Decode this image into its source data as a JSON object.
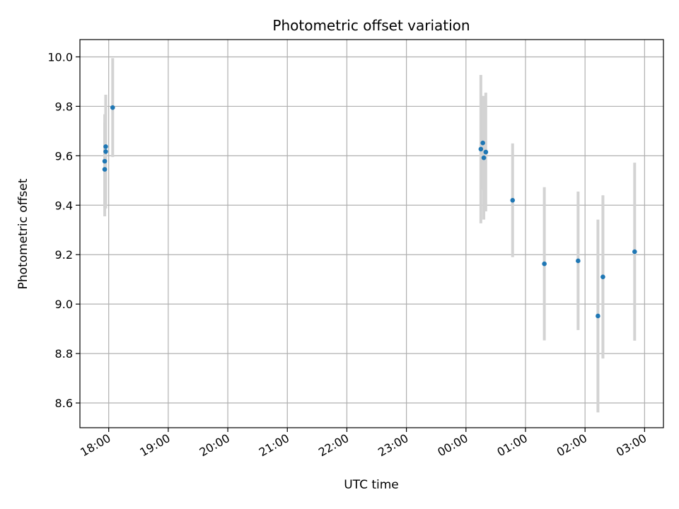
{
  "chart_data": {
    "type": "scatter",
    "title": "Photometric offset variation",
    "xlabel": "UTC time",
    "ylabel": "Photometric offset",
    "ylim": [
      8.5,
      10.07
    ],
    "yticks": [
      8.6,
      8.8,
      9.0,
      9.2,
      9.4,
      9.6,
      9.8,
      10.0
    ],
    "ytick_labels": [
      "8.6",
      "8.8",
      "9.0",
      "9.2",
      "9.4",
      "9.6",
      "9.8",
      "10.0"
    ],
    "xlim": [
      "17:31",
      "03:19"
    ],
    "xticks": [
      "18:00",
      "19:00",
      "20:00",
      "21:00",
      "22:00",
      "23:00",
      "00:00",
      "01:00",
      "02:00",
      "03:00"
    ],
    "grid": true,
    "marker_color": "#1f77b4",
    "errorbar_color": "#d3d3d3",
    "points": [
      {
        "t": "17:56",
        "y": 9.545,
        "err": 0.19
      },
      {
        "t": "17:56",
        "y": 9.578,
        "err": 0.19
      },
      {
        "t": "17:57",
        "y": 9.617,
        "err": 0.23
      },
      {
        "t": "17:57",
        "y": 9.637,
        "err": 0.21
      },
      {
        "t": "18:04",
        "y": 9.795,
        "err": 0.2
      },
      {
        "t": "00:15",
        "y": 9.627,
        "err": 0.3
      },
      {
        "t": "00:17",
        "y": 9.652,
        "err": 0.19
      },
      {
        "t": "00:18",
        "y": 9.592,
        "err": 0.25
      },
      {
        "t": "00:20",
        "y": 9.615,
        "err": 0.24
      },
      {
        "t": "00:47",
        "y": 9.42,
        "err": 0.23
      },
      {
        "t": "01:19",
        "y": 9.163,
        "err": 0.31
      },
      {
        "t": "01:53",
        "y": 9.175,
        "err": 0.28
      },
      {
        "t": "02:13",
        "y": 8.952,
        "err": 0.39
      },
      {
        "t": "02:18",
        "y": 9.11,
        "err": 0.33
      },
      {
        "t": "02:50",
        "y": 9.212,
        "err": 0.36
      }
    ]
  }
}
